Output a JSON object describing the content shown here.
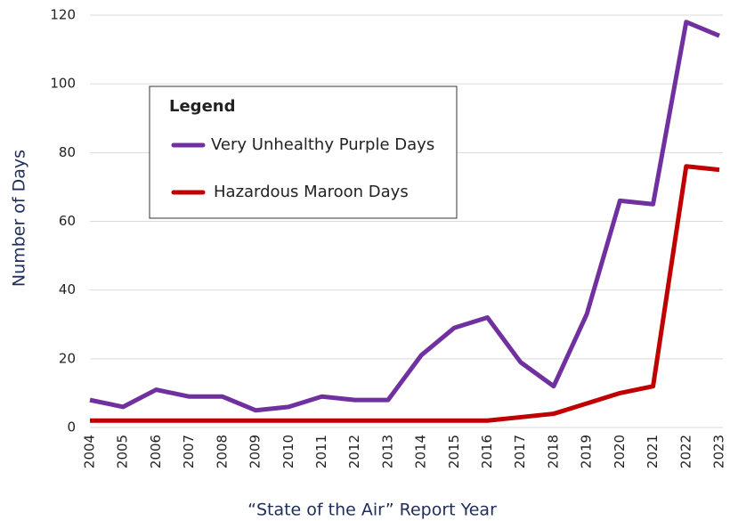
{
  "chart_data": {
    "type": "line",
    "x_label": "“State of the Air” Report Year",
    "y_label": "Number of Days",
    "legend_title": "Legend",
    "categories": [
      "2004",
      "2005",
      "2006",
      "2007",
      "2008",
      "2009",
      "2010",
      "2011",
      "2012",
      "2013",
      "2014",
      "2015",
      "2016",
      "2017",
      "2018",
      "2019",
      "2020",
      "2021",
      "2022",
      "2023"
    ],
    "series": [
      {
        "name": "Very Unhealthy Purple Days",
        "color": "#7030a0",
        "values": [
          8,
          6,
          11,
          9,
          9,
          5,
          6,
          9,
          8,
          8,
          21,
          29,
          32,
          19,
          12,
          33,
          66,
          65,
          118,
          114
        ]
      },
      {
        "name": "Hazardous Maroon Days",
        "color": "#c00000",
        "values": [
          2,
          2,
          2,
          2,
          2,
          2,
          2,
          2,
          2,
          2,
          2,
          2,
          2,
          3,
          4,
          7,
          10,
          12,
          76,
          75
        ]
      }
    ],
    "ylim": [
      0,
      120
    ],
    "yticks": [
      0,
      20,
      40,
      60,
      80,
      100,
      120
    ],
    "grid": true
  }
}
